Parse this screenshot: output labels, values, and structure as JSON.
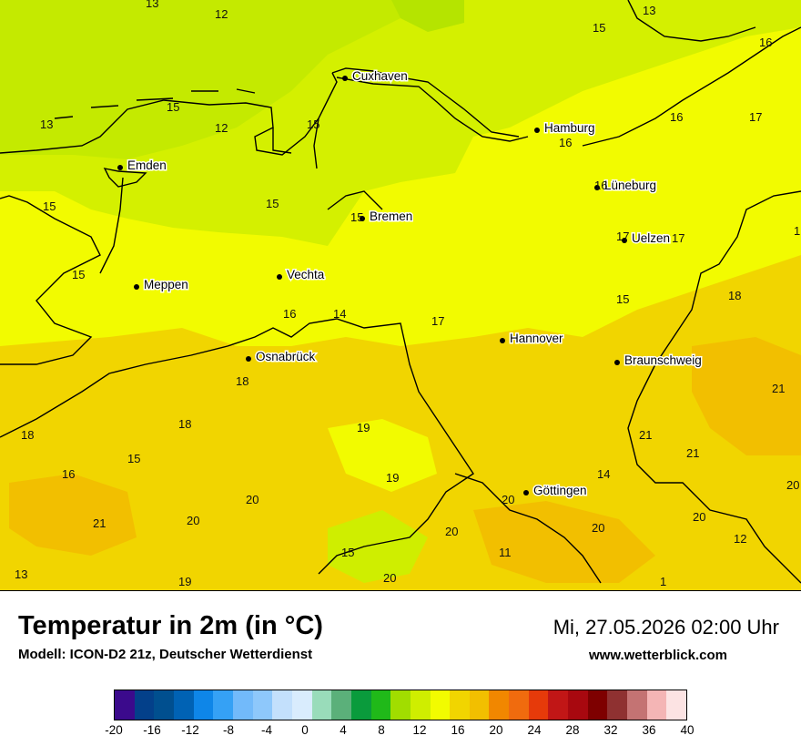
{
  "map": {
    "cities": [
      {
        "name": "Cuxhaven"
      },
      {
        "name": "Hamburg"
      },
      {
        "name": "Emden"
      },
      {
        "name": "Lüneburg"
      },
      {
        "name": "Bremen"
      },
      {
        "name": "Uelzen"
      },
      {
        "name": "Meppen"
      },
      {
        "name": "Vechta"
      },
      {
        "name": "Hannover"
      },
      {
        "name": "Osnabrück"
      },
      {
        "name": "Braunschweig"
      },
      {
        "name": "Göttingen"
      }
    ],
    "values": [
      "13",
      "12",
      "13",
      "15",
      "16",
      "15",
      "13",
      "12",
      "15",
      "16",
      "17",
      "16",
      "16",
      "15",
      "15",
      "15",
      "17",
      "17",
      "1",
      "15",
      "15",
      "18",
      "16",
      "14",
      "17",
      "18",
      "21",
      "18",
      "19",
      "21",
      "21",
      "18",
      "15",
      "19",
      "14",
      "16",
      "20",
      "20",
      "20",
      "21",
      "20",
      "20",
      "20",
      "20",
      "12",
      "11",
      "15",
      "13",
      "19",
      "20",
      "1"
    ]
  },
  "footer": {
    "title": "Temperatur in 2m (in °C)",
    "model": "Modell: ICON-D2 21z, Deutscher Wetterdienst",
    "datetime": "Mi, 27.05.2026 02:00 Uhr",
    "website": "www.wetterblick.com"
  },
  "legend": {
    "colors": [
      "#3b0a8c",
      "#03408a",
      "#004f8f",
      "#0062b4",
      "#0e86e8",
      "#35a1f5",
      "#72bafa",
      "#8ec8fb",
      "#c3e0fc",
      "#d9ecfd",
      "#99dcba",
      "#5bb07a",
      "#0a9b3c",
      "#20b919",
      "#a1dd00",
      "#cfee00",
      "#f2fb00",
      "#f1d500",
      "#f2bf00",
      "#f18700",
      "#f06b0e",
      "#e63a0a",
      "#c11616",
      "#a8080f",
      "#7e0000",
      "#8f3131",
      "#c47373",
      "#f4b5b5",
      "#fce3e3"
    ],
    "ticks": [
      "-20",
      "-16",
      "-12",
      "-8",
      "-4",
      "0",
      "4",
      "8",
      "12",
      "16",
      "20",
      "24",
      "28",
      "32",
      "36",
      "40"
    ]
  }
}
